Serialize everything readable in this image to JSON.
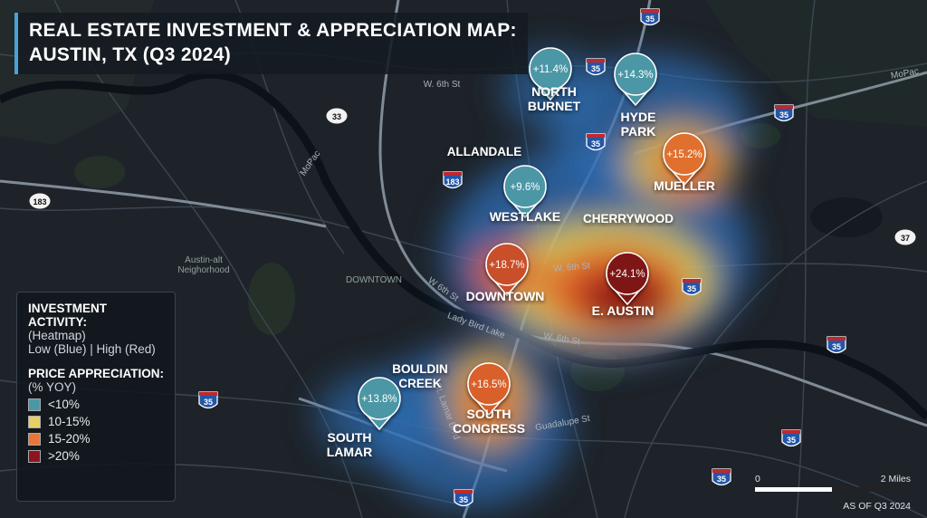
{
  "title": [
    "REAL ESTATE INVESTMENT & APPRECIATION MAP:",
    "AUSTIN, TX (Q3 2024)"
  ],
  "markers": [
    {
      "value": "+11.4%",
      "label": [
        "NORTH",
        "BURNET"
      ],
      "color": "#4b97a6"
    },
    {
      "value": "+14.3%",
      "label": [
        "HYDE",
        "PARK"
      ],
      "color": "#4b97a6"
    },
    {
      "value": "+15.2%",
      "label": [
        "MUELLER"
      ],
      "color": "#e0702e"
    },
    {
      "value": "+9.6%",
      "label": [
        "WESTLAKE"
      ],
      "color": "#4b97a6"
    },
    {
      "value": "+18.7%",
      "label": [
        "DOWNTOWN"
      ],
      "color": "#c8502a"
    },
    {
      "value": "+24.1%",
      "label": [
        "E. AUSTIN"
      ],
      "color": "#7e1418"
    },
    {
      "value": "+16.5%",
      "label": [
        "SOUTH",
        "CONGRESS"
      ],
      "color": "#d9612c"
    },
    {
      "value": "+13.8%",
      "label": [
        "SOUTH",
        "LAMAR"
      ],
      "color": "#4b97a6"
    }
  ],
  "neighborhood_labels": [
    "ALLANDALE",
    "CHERRYWOOD",
    "BOULDIN\nCREEK"
  ],
  "street_labels": [
    "W. 6th St",
    "MoPac",
    "Austin-alt\nNeighorhood",
    "DOWNTOWN",
    "W. 6th St",
    "W 6th St",
    "Lady Bird Lake",
    "W. 6th St",
    "St. Lamar Blvd",
    "Guadalupe St",
    "MoPac"
  ],
  "highway_shields": [
    "35",
    "35",
    "35",
    "35",
    "35",
    "35",
    "35",
    "35",
    "35",
    "35",
    "183",
    "183",
    "33",
    "37"
  ],
  "legend": {
    "activity_title": "INVESTMENT ACTIVITY:",
    "activity_subtitle": "(Heatmap)",
    "activity_scale": "Low (Blue) | High (Red)",
    "appreciation_title": "PRICE APPRECIATION:",
    "appreciation_subtitle": "(% YOY)",
    "items": [
      {
        "label": "<10%",
        "color": "#4b97a6"
      },
      {
        "label": "10-15%",
        "color": "#e6cf66"
      },
      {
        "label": "15-20%",
        "color": "#e8763a"
      },
      {
        "label": ">20%",
        "color": "#8c1420"
      }
    ]
  },
  "scale_bar": {
    "start": "0",
    "end": "2 Miles"
  },
  "footnote": "AS OF Q3 2024"
}
